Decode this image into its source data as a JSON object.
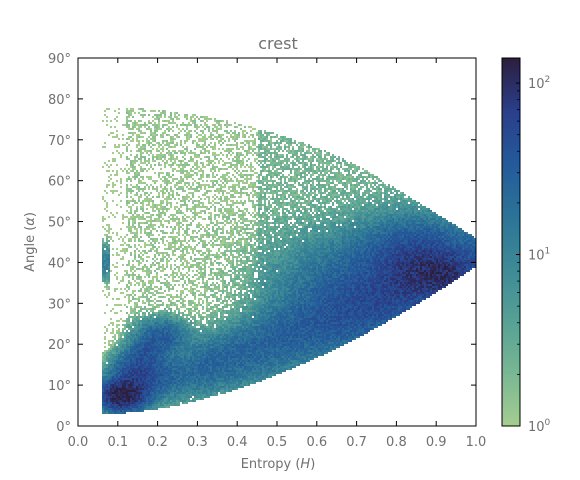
{
  "chart_data": {
    "type": "heatmap",
    "title": "crest",
    "xlabel": "Entropy (H)",
    "ylabel": "Angle (α)",
    "xlim": [
      0.0,
      1.0
    ],
    "ylim": [
      0,
      90
    ],
    "x_ticks": [
      "0.0",
      "0.1",
      "0.2",
      "0.3",
      "0.4",
      "0.5",
      "0.6",
      "0.7",
      "0.8",
      "0.9",
      "1.0"
    ],
    "y_ticks": [
      "0°",
      "10°",
      "20°",
      "30°",
      "40°",
      "50°",
      "60°",
      "70°",
      "80°",
      "90°"
    ],
    "grid": false,
    "colormap": "crest",
    "colorbar": {
      "scale": "log",
      "range": [
        1,
        140
      ],
      "ticks": [
        {
          "value": 1,
          "base": "10",
          "exp": "0"
        },
        {
          "value": 10,
          "base": "10",
          "exp": "1"
        },
        {
          "value": 100,
          "base": "10",
          "exp": "2"
        }
      ],
      "colors": [
        "#a5cd90",
        "#79b793",
        "#56a095",
        "#3e8a96",
        "#2c7397",
        "#24599a",
        "#2a3e8a",
        "#2c1e3e"
      ]
    },
    "density_regions": [
      {
        "name": "lower-band",
        "x_range": [
          0.05,
          1.0
        ],
        "y_at_x": [
          [
            0.08,
            7
          ],
          [
            0.2,
            11
          ],
          [
            0.4,
            17
          ],
          [
            0.6,
            24
          ],
          [
            0.8,
            31
          ],
          [
            1.0,
            40
          ]
        ],
        "peak_counts": 60
      },
      {
        "name": "low-entropy-cluster",
        "center": [
          0.12,
          8
        ],
        "peak_counts": 140
      },
      {
        "name": "high-entropy-cluster",
        "center": [
          0.85,
          40
        ],
        "peak_counts": 60
      },
      {
        "name": "upper-sparse-cloud",
        "x_range": [
          0.07,
          1.0
        ],
        "y_range": [
          30,
          75
        ],
        "peak_counts": 3
      }
    ]
  }
}
